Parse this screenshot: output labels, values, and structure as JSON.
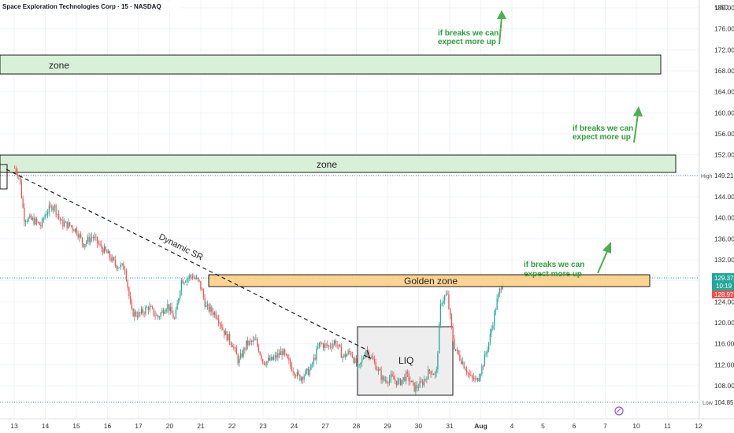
{
  "header": {
    "title": "Space Exploration Technologies Corp · 15 · NASDAQ",
    "currency": "USD"
  },
  "price_tags": {
    "high_label": "High",
    "high_value": "149.21",
    "low_label": "Low",
    "low_value": "104.85",
    "current_value": "129.37",
    "countdown": "10:19",
    "prev_value": "128.97"
  },
  "colors": {
    "up": "#26a69a",
    "down": "#ef5350",
    "zone_fill": "#d7f0d7",
    "golden_fill": "#ffcc80",
    "arrow": "#4caf50",
    "annot_text": "#2e9e3c",
    "box_fill": "#eeeeee"
  },
  "annotations": {
    "zone_upper": "zone",
    "zone_lower": "zone",
    "golden": "Golden zone",
    "dynamic_sr": "Dynamic SR",
    "liq": "LIQ",
    "breaks_1_line1": "if breaks we can",
    "breaks_1_line2": "expect more up",
    "breaks_2_line1": "if breaks we can",
    "breaks_2_line2": "expect more up",
    "breaks_3_line1": "if breaks we can",
    "breaks_3_line2": "expect more up"
  },
  "chart_data": {
    "type": "candlestick",
    "title": "Space Exploration Technologies Corp · 15 · NASDAQ",
    "ylabel": "USD",
    "ylim": [
      104,
      182
    ],
    "y_ticks": [
      "180.00",
      "176.00",
      "172.00",
      "168.00",
      "164.00",
      "160.00",
      "156.00",
      "152.00",
      "148.00",
      "144.00",
      "140.00",
      "136.00",
      "132.00",
      "128.00",
      "124.00",
      "120.00",
      "116.00",
      "112.00",
      "108.00"
    ],
    "x_ticks": [
      "13",
      "14",
      "15",
      "16",
      "17",
      "20",
      "21",
      "22",
      "23",
      "24",
      "27",
      "28",
      "29",
      "30",
      "31",
      "Aug",
      "4",
      "5",
      "6",
      "7",
      "10",
      "11",
      "12"
    ],
    "price_path": [
      [
        13,
        149.5
      ],
      [
        13.15,
        148.0
      ],
      [
        13.3,
        140.0
      ],
      [
        13.6,
        139.5
      ],
      [
        13.85,
        138.5
      ],
      [
        14.0,
        141.0
      ],
      [
        14.25,
        142.5
      ],
      [
        14.5,
        139.0
      ],
      [
        14.8,
        138.5
      ],
      [
        15.0,
        137.5
      ],
      [
        15.2,
        135.0
      ],
      [
        15.5,
        136.5
      ],
      [
        15.75,
        134.5
      ],
      [
        16.0,
        133.0
      ],
      [
        16.25,
        131.0
      ],
      [
        16.55,
        130.5
      ],
      [
        16.75,
        122.0
      ],
      [
        17.0,
        121.5
      ],
      [
        17.3,
        123.0
      ],
      [
        17.6,
        121.0
      ],
      [
        17.9,
        123.5
      ],
      [
        18.15,
        120.5
      ],
      [
        18.35,
        128.0
      ],
      [
        18.7,
        129.0
      ],
      [
        18.95,
        127.5
      ],
      [
        19.15,
        123.0
      ],
      [
        19.5,
        121.5
      ],
      [
        19.75,
        118.0
      ],
      [
        20.0,
        116.0
      ],
      [
        20.2,
        112.5
      ],
      [
        20.45,
        116.0
      ],
      [
        20.75,
        116.5
      ],
      [
        21.0,
        112.5
      ],
      [
        21.3,
        113.0
      ],
      [
        21.6,
        114.5
      ],
      [
        21.9,
        111.5
      ],
      [
        22.15,
        109.5
      ],
      [
        22.5,
        111.0
      ],
      [
        22.8,
        116.0
      ],
      [
        23.1,
        115.5
      ],
      [
        23.3,
        116.5
      ],
      [
        23.55,
        113.5
      ],
      [
        23.8,
        114.5
      ],
      [
        24.05,
        111.0
      ],
      [
        24.3,
        115.0
      ],
      [
        24.55,
        112.5
      ],
      [
        24.85,
        109.0
      ],
      [
        25.1,
        109.5
      ],
      [
        25.35,
        108.5
      ],
      [
        25.6,
        110.0
      ],
      [
        25.85,
        107.5
      ],
      [
        26.1,
        108.5
      ],
      [
        26.35,
        111.0
      ],
      [
        26.55,
        110.0
      ],
      [
        26.7,
        124.0
      ],
      [
        26.9,
        125.5
      ],
      [
        27.05,
        118.5
      ],
      [
        27.15,
        115.0
      ],
      [
        27.4,
        112.5
      ],
      [
        27.65,
        109.5
      ],
      [
        27.85,
        109.0
      ],
      [
        28.05,
        112.0
      ],
      [
        28.25,
        116.5
      ],
      [
        28.5,
        124.0
      ],
      [
        28.7,
        128.5
      ]
    ],
    "price_path_x_units": "days from 13 (trading-day index; Aug = 1 Aug)",
    "zones": [
      {
        "label": "zone",
        "from": 169.0,
        "to": 172.5
      },
      {
        "label": "zone",
        "from": 150.0,
        "to": 153.2
      },
      {
        "label": "Golden zone",
        "from": 127.6,
        "to": 129.8
      }
    ],
    "liq_box": {
      "label": "LIQ",
      "from": 107.0,
      "to": 119.8
    },
    "dynamic_sr_line": {
      "label": "Dynamic SR",
      "start": [
        13.0,
        150.5
      ],
      "end": [
        24.0,
        114.5
      ]
    },
    "high": 149.21,
    "low": 104.85,
    "last": 129.37
  }
}
